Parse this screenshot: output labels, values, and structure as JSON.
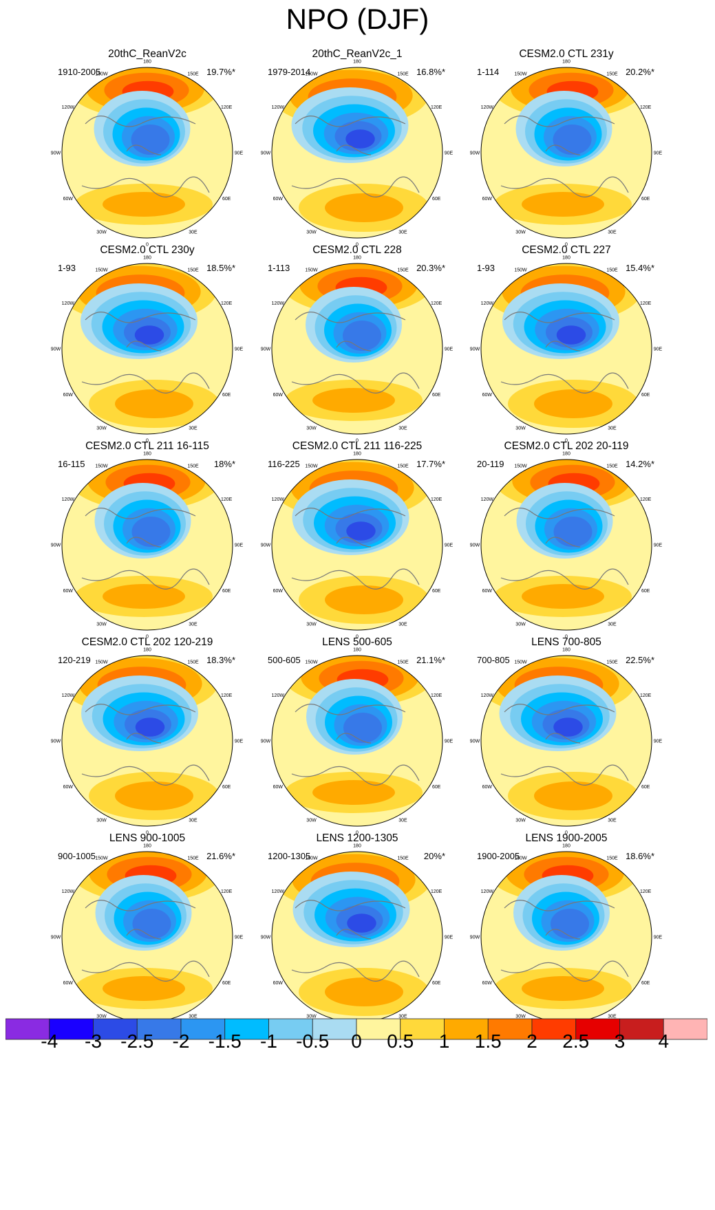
{
  "title": "NPO (DJF)",
  "chart_data": {
    "type": "contour-map-grid",
    "title": "NPO (DJF)",
    "projection": "north polar stereographic",
    "longitude_labels": [
      "180",
      "150E",
      "120E",
      "90E",
      "60E",
      "30E",
      "0",
      "30W",
      "60W",
      "90W",
      "120W",
      "150W"
    ],
    "panels": [
      {
        "title": "20thC_ReanV2c",
        "period": "1910-2005",
        "explained_variance": "19.7%*"
      },
      {
        "title": "20thC_ReanV2c_1",
        "period": "1979-2014",
        "explained_variance": "16.8%*"
      },
      {
        "title": "CESM2.0 CTL 231y",
        "period": "1-114",
        "explained_variance": "20.2%*"
      },
      {
        "title": "CESM2.0 CTL 230y",
        "period": "1-93",
        "explained_variance": "18.5%*"
      },
      {
        "title": "CESM2.0 CTL 228",
        "period": "1-113",
        "explained_variance": "20.3%*"
      },
      {
        "title": "CESM2.0 CTL 227",
        "period": "1-93",
        "explained_variance": "15.4%*"
      },
      {
        "title": "CESM2.0 CTL 211 16-115",
        "period": "16-115",
        "explained_variance": "18%*"
      },
      {
        "title": "CESM2.0 CTL 211 116-225",
        "period": "116-225",
        "explained_variance": "17.7%*"
      },
      {
        "title": "CESM2.0 CTL 202 20-119",
        "period": "20-119",
        "explained_variance": "14.2%*"
      },
      {
        "title": "CESM2.0 CTL 202 120-219",
        "period": "120-219",
        "explained_variance": "18.3%*"
      },
      {
        "title": "LENS 500-605",
        "period": "500-605",
        "explained_variance": "21.1%*"
      },
      {
        "title": "LENS 700-805",
        "period": "700-805",
        "explained_variance": "22.5%*"
      },
      {
        "title": "LENS 900-1005",
        "period": "900-1005",
        "explained_variance": "21.6%*"
      },
      {
        "title": "LENS 1200-1305",
        "period": "1200-1305",
        "explained_variance": "20%*"
      },
      {
        "title": "LENS 1900-2005",
        "period": "1900-2005",
        "explained_variance": "18.6%*"
      }
    ],
    "colorbar": {
      "ticks": [
        "-4",
        "-3",
        "-2.5",
        "-2",
        "-1.5",
        "-1",
        "-0.5",
        "0",
        "0.5",
        "1",
        "1.5",
        "2",
        "2.5",
        "3",
        "4"
      ],
      "colors": [
        "#8a2be2",
        "#1a00ff",
        "#2c4be6",
        "#3779e8",
        "#2c96f2",
        "#00bcff",
        "#77ccf2",
        "#aadcf2",
        "#fff59e",
        "#ffd93a",
        "#ffaa00",
        "#ff7a00",
        "#ff3c00",
        "#e60000",
        "#c81e1e",
        "#ffb4b4"
      ]
    }
  }
}
